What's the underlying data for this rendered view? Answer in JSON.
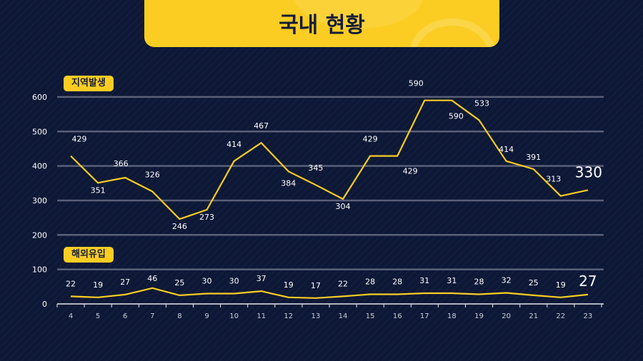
{
  "title": "국내 현황",
  "sections": {
    "local_label": "지역발생",
    "import_label": "해외유입"
  },
  "colors": {
    "background": "#0d1836",
    "accent": "#fbcd22",
    "text": "#ffffff",
    "grid": "#5a6078"
  },
  "chart_data": {
    "type": "line",
    "x": [
      4,
      5,
      6,
      7,
      8,
      9,
      10,
      11,
      12,
      13,
      14,
      15,
      16,
      17,
      18,
      19,
      20,
      21,
      22,
      23
    ],
    "y_ticks": [
      0,
      100,
      200,
      300,
      400,
      500,
      600
    ],
    "ylim": [
      0,
      600
    ],
    "grid": true,
    "series": [
      {
        "name": "지역발생",
        "values": [
          429,
          351,
          366,
          326,
          246,
          273,
          414,
          467,
          384,
          345,
          304,
          429,
          429,
          590,
          590,
          533,
          414,
          391,
          313,
          330
        ]
      },
      {
        "name": "해외유입",
        "values": [
          22,
          19,
          27,
          46,
          25,
          30,
          30,
          37,
          19,
          17,
          22,
          28,
          28,
          31,
          31,
          28,
          32,
          25,
          19,
          27
        ]
      }
    ]
  }
}
